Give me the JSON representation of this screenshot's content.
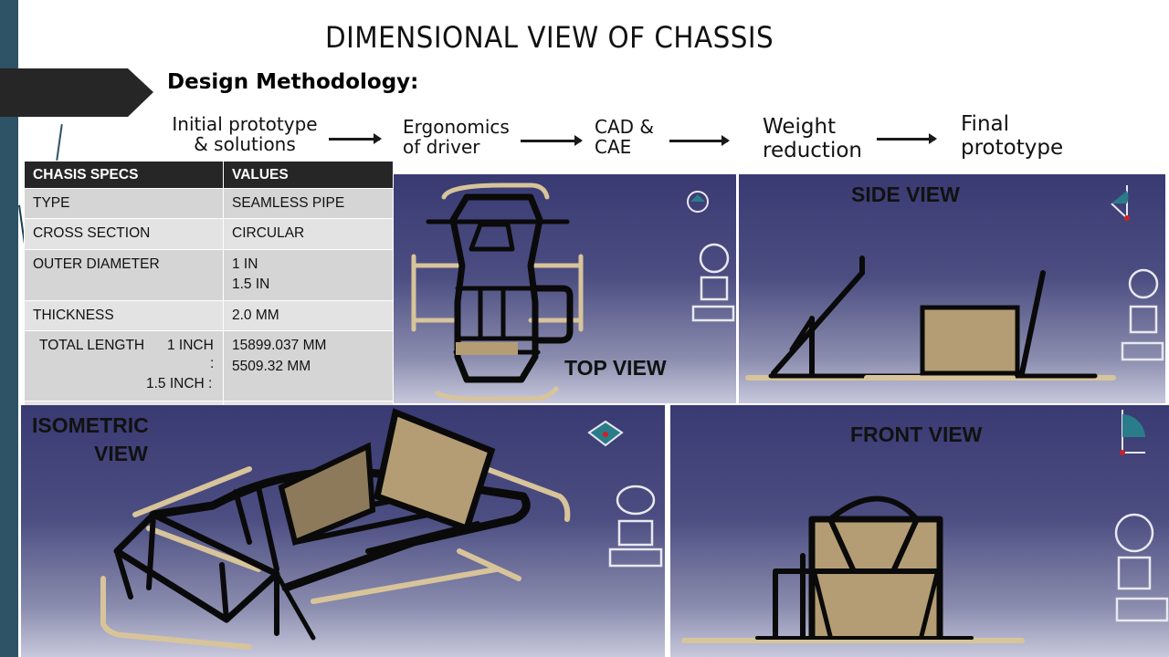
{
  "slide": {
    "title": "DIMENSIONAL VIEW OF CHASSIS",
    "methodology_title": "Design Methodology:"
  },
  "flow": {
    "step1_line1": "Initial prototype",
    "step1_line2": "& solutions",
    "step2_line1": "Ergonomics",
    "step2_line2": "of driver",
    "step3_line1": "CAD &",
    "step3_line2": "CAE",
    "step4_line1": "Weight",
    "step4_line2": "reduction",
    "step5_line1": "Final",
    "step5_line2": "prototype"
  },
  "table": {
    "header_specs": "CHASIS SPECS",
    "header_values": "VALUES",
    "type_label": "TYPE",
    "type_value": "SEAMLESS PIPE",
    "cross_label": "CROSS SECTION",
    "cross_value": "CIRCULAR",
    "od_label": "OUTER DIAMETER",
    "od_value1": "1 IN",
    "od_value2": "1.5 IN",
    "thick_label": "THICKNESS",
    "thick_value": "2.0 MM",
    "tl_label": "TOTAL LENGTH",
    "tl_sub1": "1 INCH",
    "tl_colon": ":",
    "tl_sub2": "1.5 INCH :",
    "tl_value1": "15899.037 MM",
    "tl_value2": "5509.32 MM"
  },
  "views": {
    "top": "TOP VIEW",
    "side": "SIDE VIEW",
    "iso_line1": "ISOMETRIC",
    "iso_line2": "VIEW",
    "front": "FRONT VIEW"
  },
  "colors": {
    "tube_black": "#0a0a0a",
    "tube_tan": "#d8c49a",
    "plate": "#b49d74",
    "panel_top": "#393a72",
    "strip": "#2e5266"
  }
}
